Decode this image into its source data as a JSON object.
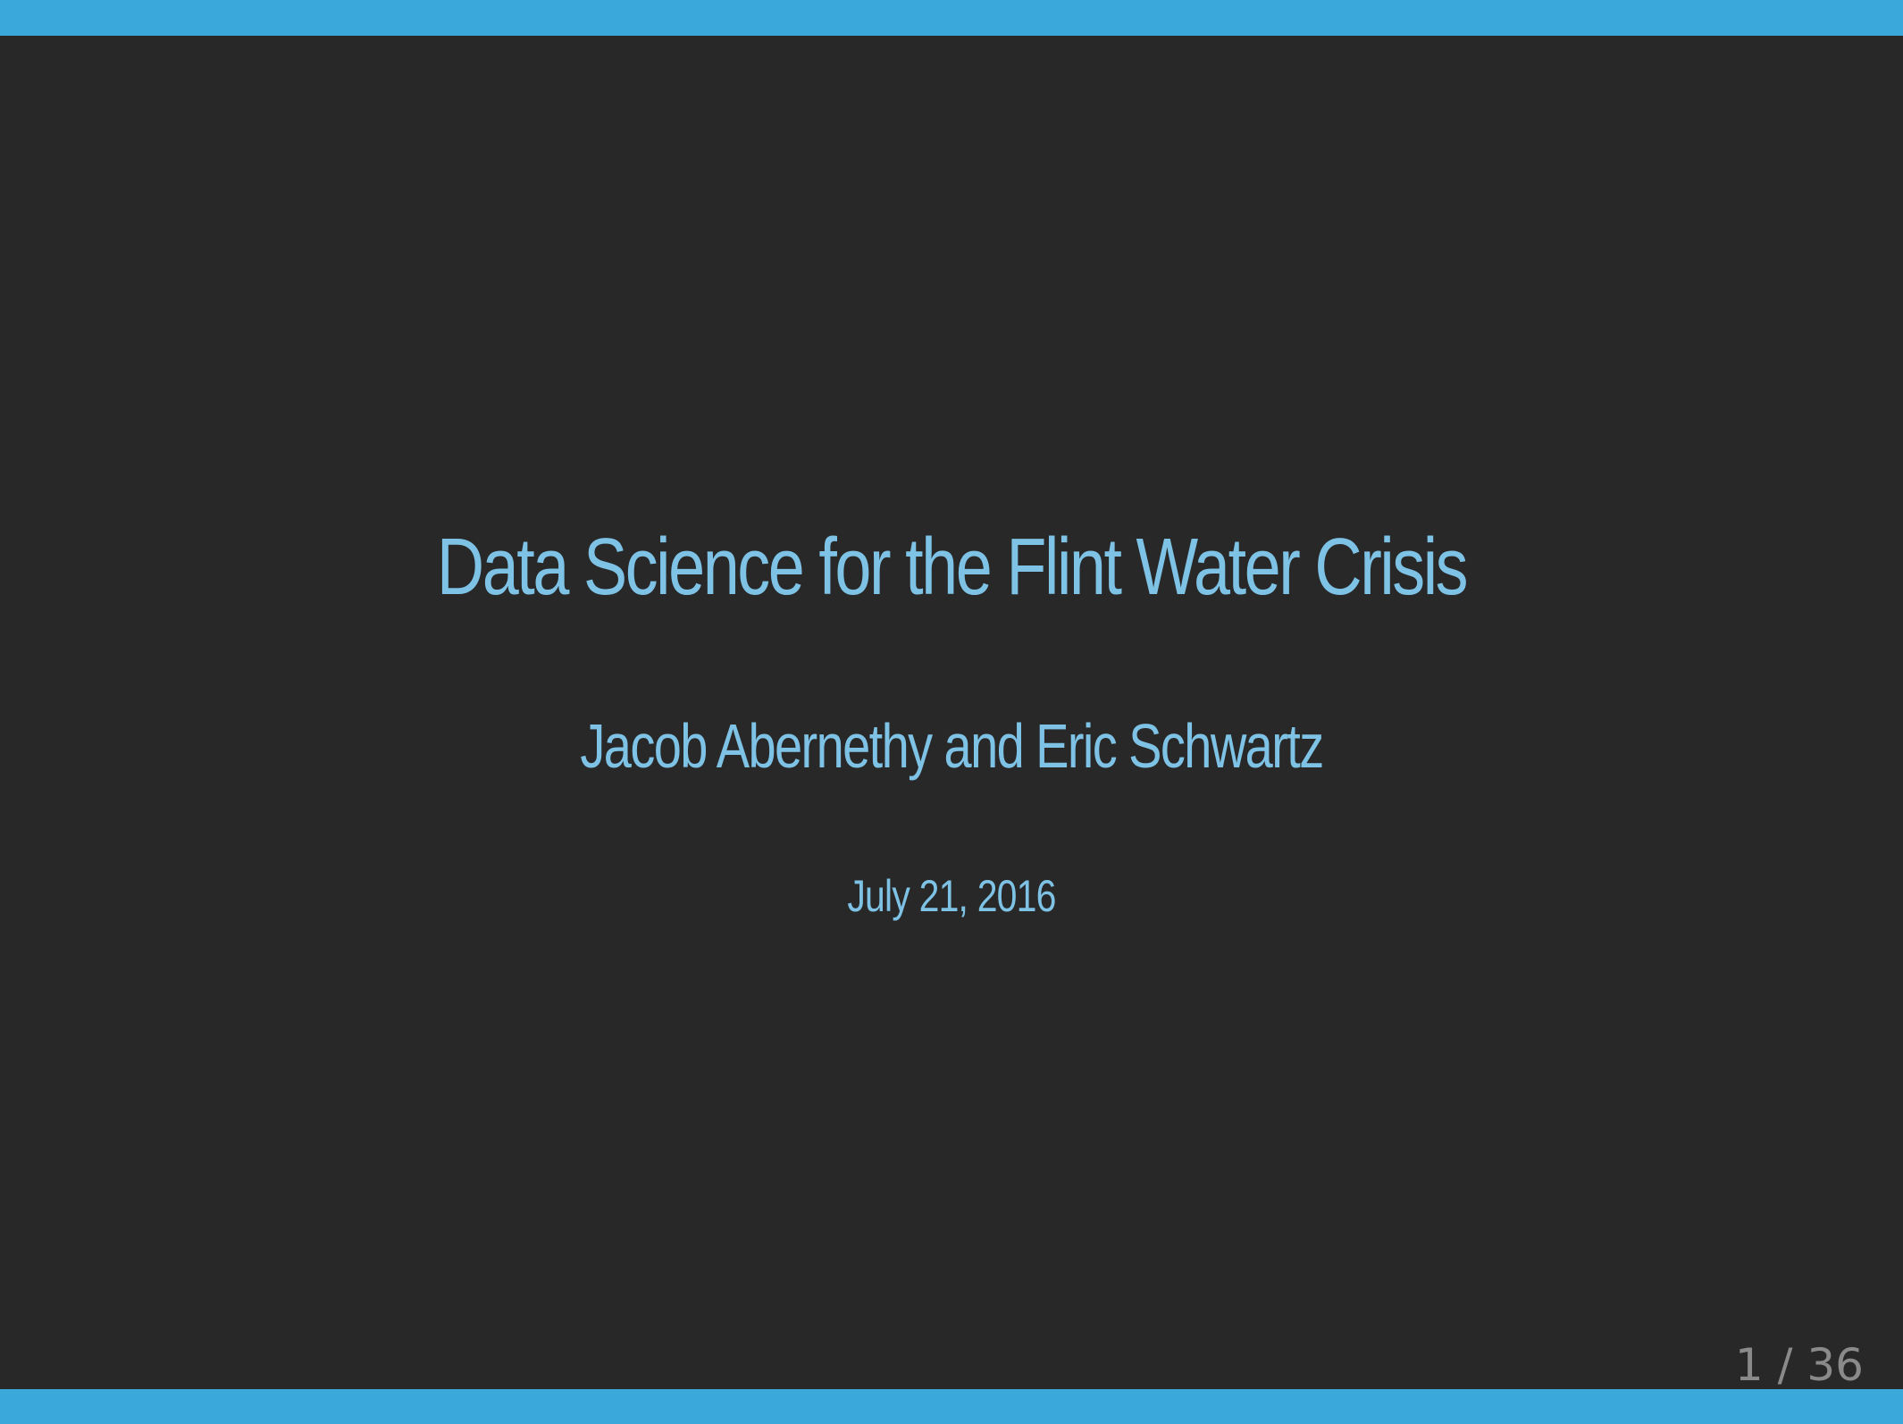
{
  "slide": {
    "title": "Data Science for the Flint Water Crisis",
    "authors": "Jacob Abernethy and Eric Schwartz",
    "date": "July 21, 2016",
    "page_indicator": "1 / 36"
  },
  "colors": {
    "background": "#282828",
    "accent_bar": "#3aa8db",
    "title_text": "#7ec3e6",
    "page_number_text": "#8a8a8a"
  }
}
